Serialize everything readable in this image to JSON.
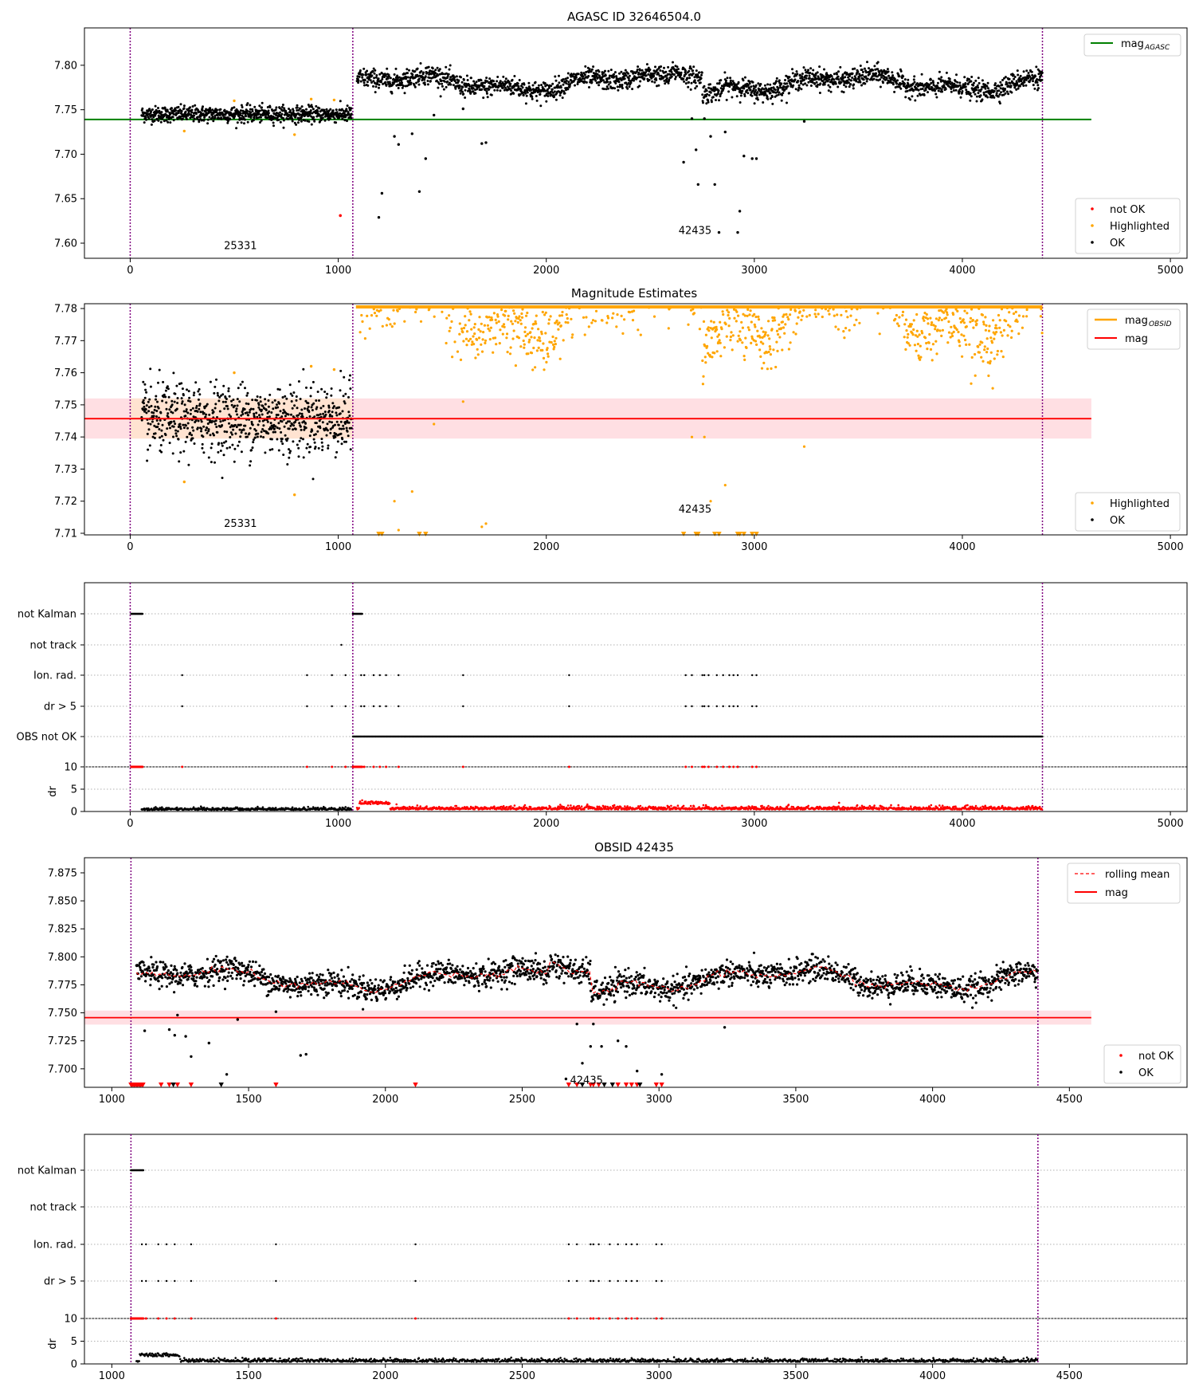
{
  "chart_data": [
    {
      "type": "scatter",
      "title": "AGASC ID 32646504.0",
      "xlim": [
        -220,
        5080
      ],
      "ylim": [
        7.583,
        7.842
      ],
      "xticks": [
        0,
        1000,
        2000,
        3000,
        4000,
        5000
      ],
      "yticks": [
        "7.60",
        "7.65",
        "7.70",
        "7.75",
        "7.80"
      ],
      "vlines": [
        0,
        1070,
        4385
      ],
      "hline": {
        "name": "mag",
        "subscript": "AGASC",
        "value": 7.739,
        "x_end": 4620
      },
      "legend_top": "top-right",
      "legend_bottom": [
        "not OK",
        "Highlighted",
        "OK"
      ],
      "annotations": [
        {
          "text": "25331",
          "x": 530,
          "y": 7.597
        },
        {
          "text": "42435",
          "x": 2715,
          "y": 7.614
        }
      ],
      "segments": [
        {
          "x0": 50,
          "x1": 1065,
          "mean": 7.745,
          "spread": 0.005
        },
        {
          "x0": 1090,
          "x1": 4385,
          "mean": 7.782,
          "spread": 0.008
        }
      ],
      "outliers_ok": [
        [
          1195,
          7.629
        ],
        [
          1210,
          7.656
        ],
        [
          1270,
          7.72
        ],
        [
          1290,
          7.711
        ],
        [
          1355,
          7.723
        ],
        [
          1390,
          7.658
        ],
        [
          1420,
          7.695
        ],
        [
          1460,
          7.744
        ],
        [
          1600,
          7.751
        ],
        [
          1690,
          7.712
        ],
        [
          1710,
          7.713
        ],
        [
          2660,
          7.691
        ],
        [
          2700,
          7.74
        ],
        [
          2720,
          7.705
        ],
        [
          2730,
          7.666
        ],
        [
          2760,
          7.74
        ],
        [
          2790,
          7.72
        ],
        [
          2810,
          7.666
        ],
        [
          2830,
          7.612
        ],
        [
          2860,
          7.725
        ],
        [
          2920,
          7.612
        ],
        [
          2930,
          7.636
        ],
        [
          2950,
          7.698
        ],
        [
          2990,
          7.695
        ],
        [
          3010,
          7.695
        ],
        [
          3240,
          7.737
        ]
      ],
      "not_ok": [
        [
          1010,
          7.631
        ]
      ],
      "highlighted": [
        [
          260,
          7.726
        ],
        [
          500,
          7.76
        ],
        [
          790,
          7.722
        ],
        [
          870,
          7.762
        ],
        [
          980,
          7.761
        ]
      ]
    },
    {
      "type": "scatter",
      "title": "Magnitude Estimates",
      "xlim": [
        -220,
        5080
      ],
      "ylim": [
        7.7095,
        7.7815
      ],
      "xticks": [
        0,
        1000,
        2000,
        3000,
        4000,
        5000
      ],
      "yticks": [
        "7.71",
        "7.72",
        "7.73",
        "7.74",
        "7.75",
        "7.76",
        "7.77",
        "7.78"
      ],
      "vlines": [
        0,
        1070,
        4385
      ],
      "mag": 7.7457,
      "band": [
        7.7395,
        7.752
      ],
      "band_x_end": 4620,
      "legend_top": [
        {
          "name": "mag",
          "subscript": "OBSID"
        },
        {
          "name": "mag"
        }
      ],
      "legend_bottom": [
        "Highlighted",
        "OK"
      ],
      "annotations": [
        {
          "text": "25331",
          "x": 530,
          "y": 7.713
        },
        {
          "text": "42435",
          "x": 2715,
          "y": 7.7175
        }
      ]
    },
    {
      "type": "scatter",
      "name": "flags",
      "xlim": [
        -220,
        5080
      ],
      "categories": [
        "not Kalman",
        "not track",
        "Ion. rad.",
        "dr > 5",
        "OBS not OK"
      ],
      "xticks": [
        0,
        1000,
        2000,
        3000,
        4000,
        5000
      ],
      "dr_yticks": [
        "0",
        "5",
        "10"
      ],
      "dr_ylabel": "dr",
      "vlines": [
        0,
        1070,
        4385
      ],
      "not_kalman_x": [
        [
          5,
          60
        ],
        [
          1070,
          1115
        ]
      ],
      "not_track_x": [
        1015
      ],
      "ion_rad_x": [
        250,
        850,
        970,
        1035,
        1110,
        1125,
        1170,
        1200,
        1230,
        1290,
        1600,
        2110,
        2670,
        2700,
        2750,
        2760,
        2780,
        2820,
        2850,
        2880,
        2900,
        2920,
        2990,
        3010
      ],
      "obs_not_ok_x": [
        1070,
        4385
      ]
    },
    {
      "type": "scatter",
      "title": "OBSID 42435",
      "xlim": [
        900,
        4930
      ],
      "ylim": [
        7.6835,
        7.8885
      ],
      "xticks": [
        1000,
        1500,
        2000,
        2500,
        3000,
        3500,
        4000,
        4500
      ],
      "yticks": [
        "7.700",
        "7.725",
        "7.750",
        "7.775",
        "7.800",
        "7.825",
        "7.850",
        "7.875"
      ],
      "vlines": [
        1070,
        4385
      ],
      "mag": 7.7457,
      "band": [
        7.7395,
        7.752
      ],
      "band_x_end": 4580,
      "legend_top": [
        "rolling mean",
        "mag"
      ],
      "legend_bottom": [
        "not OK",
        "OK"
      ],
      "annotations": [
        {
          "text": "42435",
          "x": 2735,
          "y": 7.6895
        }
      ],
      "outliers_ok": [
        [
          1120,
          7.734
        ],
        [
          1210,
          7.735
        ],
        [
          1240,
          7.748
        ],
        [
          1230,
          7.73
        ],
        [
          1270,
          7.729
        ],
        [
          1290,
          7.711
        ],
        [
          1355,
          7.723
        ],
        [
          1420,
          7.695
        ],
        [
          1460,
          7.744
        ],
        [
          1600,
          7.751
        ],
        [
          1690,
          7.712
        ],
        [
          1710,
          7.713
        ],
        [
          2660,
          7.691
        ],
        [
          2700,
          7.74
        ],
        [
          2720,
          7.705
        ],
        [
          2750,
          7.72
        ],
        [
          2760,
          7.74
        ],
        [
          2790,
          7.72
        ],
        [
          2850,
          7.725
        ],
        [
          2880,
          7.72
        ],
        [
          2920,
          7.698
        ],
        [
          3010,
          7.695
        ],
        [
          3240,
          7.737
        ]
      ]
    },
    {
      "type": "scatter",
      "name": "flags OBSID",
      "xlim": [
        900,
        4930
      ],
      "categories": [
        "not Kalman",
        "not track",
        "Ion. rad.",
        "dr > 5"
      ],
      "xticks": [
        1000,
        1500,
        2000,
        2500,
        3000,
        3500,
        4000,
        4500
      ],
      "dr_yticks": [
        "0",
        "5",
        "10"
      ],
      "dr_ylabel": "dr",
      "vlines": [
        1070,
        4385
      ],
      "not_kalman_x": [
        [
          1070,
          1115
        ]
      ],
      "ion_rad_x": [
        1110,
        1125,
        1170,
        1200,
        1230,
        1290,
        1600,
        2110,
        2670,
        2700,
        2750,
        2760,
        2780,
        2820,
        2850,
        2880,
        2900,
        2920,
        2990,
        3010
      ]
    }
  ],
  "colors": {
    "ok": "#000000",
    "not_ok": "#ff0000",
    "highlighted": "#ffa500",
    "agasc_line": "#008000",
    "mag_line": "#ff0000",
    "band": "#ffdfe3",
    "vline": "#800080",
    "grid": "#b0b0b0"
  }
}
